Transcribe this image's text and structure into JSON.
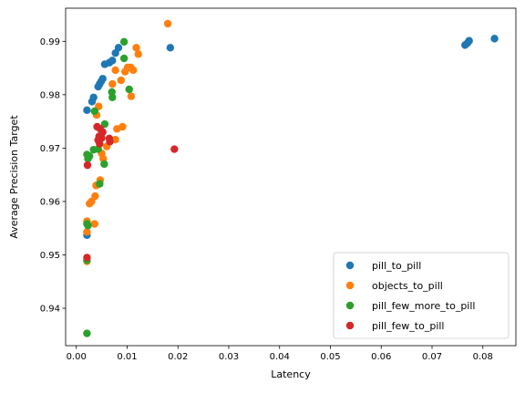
{
  "chart_data": {
    "type": "scatter",
    "xlabel": "Latency",
    "ylabel": "Average Precision Target",
    "xlim": [
      -0.0021,
      0.0865
    ],
    "ylim": [
      0.933,
      0.9962
    ],
    "xticks": [
      0.0,
      0.01,
      0.02,
      0.03,
      0.04,
      0.05,
      0.06,
      0.07,
      0.08
    ],
    "xtick_labels": [
      "0.00",
      "0.01",
      "0.02",
      "0.03",
      "0.04",
      "0.05",
      "0.06",
      "0.07",
      "0.08"
    ],
    "yticks": [
      0.94,
      0.95,
      0.96,
      0.97,
      0.98,
      0.99
    ],
    "ytick_labels": [
      "0.94",
      "0.95",
      "0.96",
      "0.97",
      "0.98",
      "0.99"
    ],
    "legend_position": "lower-right",
    "series": [
      {
        "name": "pill_to_pill",
        "color": "#1f77b4",
        "points": [
          [
            0.0021,
            0.9771
          ],
          [
            0.0021,
            0.9537
          ],
          [
            0.0031,
            0.9787
          ],
          [
            0.0034,
            0.9795
          ],
          [
            0.0043,
            0.9815
          ],
          [
            0.0046,
            0.982
          ],
          [
            0.0049,
            0.9825
          ],
          [
            0.0052,
            0.983
          ],
          [
            0.0056,
            0.9857
          ],
          [
            0.0065,
            0.986
          ],
          [
            0.0071,
            0.9864
          ],
          [
            0.0077,
            0.9878
          ],
          [
            0.0083,
            0.9888
          ],
          [
            0.0185,
            0.9888
          ],
          [
            0.0765,
            0.9893
          ],
          [
            0.077,
            0.9897
          ],
          [
            0.0773,
            0.9901
          ],
          [
            0.0823,
            0.9905
          ]
        ]
      },
      {
        "name": "objects_to_pill",
        "color": "#ff7f0e",
        "points": [
          [
            0.018,
            0.9933
          ],
          [
            0.0118,
            0.9888
          ],
          [
            0.0122,
            0.9876
          ],
          [
            0.0107,
            0.9851
          ],
          [
            0.0112,
            0.9846
          ],
          [
            0.0096,
            0.9843
          ],
          [
            0.0101,
            0.9851
          ],
          [
            0.0077,
            0.9846
          ],
          [
            0.0088,
            0.9827
          ],
          [
            0.0071,
            0.982
          ],
          [
            0.0108,
            0.9797
          ],
          [
            0.0044,
            0.9778
          ],
          [
            0.004,
            0.9762
          ],
          [
            0.0091,
            0.974
          ],
          [
            0.008,
            0.9736
          ],
          [
            0.0077,
            0.9716
          ],
          [
            0.006,
            0.9703
          ],
          [
            0.005,
            0.969
          ],
          [
            0.0053,
            0.968
          ],
          [
            0.0047,
            0.964
          ],
          [
            0.0039,
            0.963
          ],
          [
            0.0037,
            0.961
          ],
          [
            0.003,
            0.96
          ],
          [
            0.0026,
            0.9596
          ],
          [
            0.0021,
            0.9563
          ],
          [
            0.0036,
            0.9558
          ],
          [
            0.0021,
            0.9543
          ],
          [
            0.0021,
            0.9488
          ]
        ]
      },
      {
        "name": "pill_few_more_to_pill",
        "color": "#2ca02c",
        "points": [
          [
            0.0094,
            0.9899
          ],
          [
            0.0094,
            0.9868
          ],
          [
            0.0104,
            0.981
          ],
          [
            0.007,
            0.9805
          ],
          [
            0.0071,
            0.9795
          ],
          [
            0.0056,
            0.9745
          ],
          [
            0.0036,
            0.9769
          ],
          [
            0.0043,
            0.9698
          ],
          [
            0.0034,
            0.9697
          ],
          [
            0.0021,
            0.9688
          ],
          [
            0.0026,
            0.9685
          ],
          [
            0.0023,
            0.968
          ],
          [
            0.0055,
            0.967
          ],
          [
            0.0046,
            0.9633
          ],
          [
            0.0021,
            0.9558
          ],
          [
            0.0023,
            0.9555
          ],
          [
            0.0021,
            0.949
          ],
          [
            0.0021,
            0.9353
          ]
        ]
      },
      {
        "name": "pill_few_to_pill",
        "color": "#d62728",
        "points": [
          [
            0.0041,
            0.974
          ],
          [
            0.0047,
            0.9736
          ],
          [
            0.0052,
            0.973
          ],
          [
            0.0045,
            0.9722
          ],
          [
            0.005,
            0.9719
          ],
          [
            0.0043,
            0.9715
          ],
          [
            0.0065,
            0.9718
          ],
          [
            0.0066,
            0.9712
          ],
          [
            0.0046,
            0.9708
          ],
          [
            0.0193,
            0.9698
          ],
          [
            0.0022,
            0.9668
          ],
          [
            0.0021,
            0.9495
          ]
        ]
      }
    ]
  }
}
